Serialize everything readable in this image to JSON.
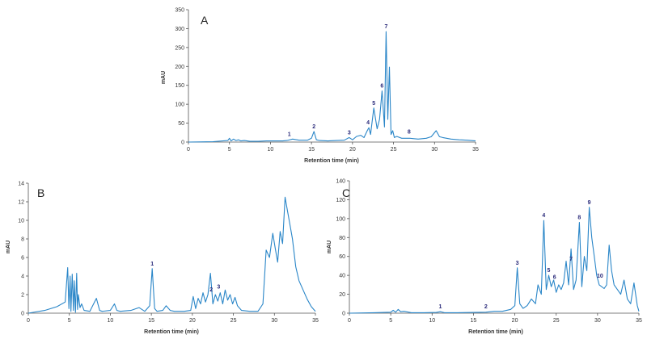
{
  "colors": {
    "trace": "#2a86c8",
    "peak_label": "#2a2a7a",
    "axis": "#555555"
  },
  "chart_data": [
    {
      "type": "line",
      "panel": "A",
      "xlabel": "Retention time (min)",
      "ylabel": "mAU",
      "xlim": [
        0,
        35
      ],
      "ylim": [
        0,
        350
      ],
      "xticks": [
        "0",
        "5",
        "10",
        "15",
        "20",
        "25",
        "30",
        "35"
      ],
      "yticks": [
        "0",
        "50",
        "100",
        "150",
        "200",
        "250",
        "300",
        "350"
      ],
      "series": [
        {
          "x": [
            0,
            3,
            4.8,
            5.0,
            5.2,
            5.5,
            5.8,
            6.1,
            6.4,
            6.8,
            7.5,
            8.5,
            9.5,
            10.5,
            11.5,
            12.0,
            12.7,
            13.5,
            14.5,
            15.0,
            15.3,
            15.6,
            16.0,
            17.0,
            18.0,
            19.0,
            19.6,
            20.0,
            20.5,
            21.0,
            21.4,
            21.8,
            22.0,
            22.2,
            22.6,
            23.0,
            23.3,
            23.6,
            23.9,
            24.1,
            24.3,
            24.5,
            24.7,
            24.9,
            25.1,
            25.4,
            26.0,
            27.0,
            28.0,
            29.0,
            29.6,
            30.2,
            30.6,
            31.0,
            32.0,
            33.0,
            34.0,
            35.0
          ],
          "y": [
            0,
            1,
            4,
            10,
            3,
            8,
            4,
            6,
            3,
            4,
            2,
            2,
            3,
            3,
            3,
            4,
            8,
            5,
            5,
            10,
            28,
            6,
            4,
            3,
            4,
            5,
            12,
            6,
            15,
            18,
            12,
            30,
            38,
            20,
            90,
            35,
            60,
            135,
            40,
            292,
            60,
            198,
            20,
            30,
            12,
            15,
            10,
            10,
            8,
            10,
            14,
            30,
            14,
            12,
            8,
            6,
            5,
            3
          ]
        }
      ],
      "peak_labels": [
        {
          "label": "1",
          "x": 12.3,
          "y": 8
        },
        {
          "label": "2",
          "x": 15.3,
          "y": 28
        },
        {
          "label": "3",
          "x": 19.6,
          "y": 12
        },
        {
          "label": "4",
          "x": 21.9,
          "y": 38
        },
        {
          "label": "5",
          "x": 22.6,
          "y": 90
        },
        {
          "label": "6",
          "x": 23.6,
          "y": 135
        },
        {
          "label": "7",
          "x": 24.1,
          "y": 292
        },
        {
          "label": "8",
          "x": 26.9,
          "y": 14
        }
      ]
    },
    {
      "type": "line",
      "panel": "B",
      "xlabel": "Retention time (min)",
      "ylabel": "mAU",
      "xlim": [
        0,
        35
      ],
      "ylim": [
        0,
        14
      ],
      "xticks": [
        "0",
        "5",
        "10",
        "15",
        "20",
        "25",
        "30",
        "35"
      ],
      "yticks": [
        "0",
        "2",
        "4",
        "6",
        "8",
        "10",
        "12",
        "14"
      ],
      "series": [
        {
          "x": [
            0,
            2,
            3.5,
            4.5,
            4.8,
            4.95,
            5.1,
            5.2,
            5.35,
            5.5,
            5.6,
            5.75,
            5.9,
            6.0,
            6.1,
            6.3,
            6.5,
            6.8,
            7.5,
            8.3,
            8.7,
            9.0,
            10.0,
            10.5,
            10.8,
            11.2,
            12.5,
            13.5,
            14.2,
            14.8,
            15.1,
            15.4,
            15.7,
            16.4,
            16.8,
            17.3,
            17.8,
            19.0,
            19.8,
            20.1,
            20.4,
            20.7,
            21.0,
            21.3,
            21.6,
            21.9,
            22.2,
            22.5,
            22.8,
            23.1,
            23.4,
            23.7,
            24.0,
            24.3,
            24.6,
            24.9,
            25.2,
            25.5,
            26.0,
            27.0,
            28.0,
            28.6,
            29.0,
            29.4,
            29.8,
            30.1,
            30.4,
            30.7,
            31.0,
            31.3,
            31.6,
            31.9,
            32.2,
            32.6,
            33.0,
            33.5,
            34.0,
            34.5,
            35.0
          ],
          "y": [
            0,
            0.3,
            0.7,
            1.2,
            4.9,
            0.5,
            4.0,
            0.2,
            4.2,
            0.3,
            3.5,
            0.1,
            4.3,
            0.4,
            2.0,
            0.6,
            1.0,
            0.3,
            0.2,
            1.6,
            0.3,
            0.2,
            0.3,
            1.0,
            0.3,
            0.2,
            0.3,
            0.6,
            0.2,
            0.8,
            4.8,
            0.5,
            0.2,
            0.3,
            0.8,
            0.3,
            0.2,
            0.2,
            0.3,
            1.8,
            0.5,
            1.6,
            1.0,
            2.2,
            1.2,
            2.0,
            4.3,
            1.0,
            2.0,
            1.3,
            2.2,
            1.0,
            2.5,
            1.4,
            2.0,
            1.0,
            1.7,
            0.8,
            0.3,
            0.2,
            0.2,
            1.0,
            6.8,
            6.0,
            8.6,
            7.0,
            5.5,
            8.8,
            7.5,
            12.5,
            11.0,
            9.5,
            8.0,
            5.0,
            3.5,
            2.5,
            1.5,
            0.7,
            0.2
          ]
        }
      ],
      "peak_labels": [
        {
          "label": "1",
          "x": 15.1,
          "y": 4.8
        },
        {
          "label": "2",
          "x": 22.3,
          "y": 2.0
        },
        {
          "label": "3",
          "x": 23.2,
          "y": 2.3
        }
      ]
    },
    {
      "type": "line",
      "panel": "C",
      "xlabel": "Retention time (min)",
      "ylabel": "mAU",
      "xlim": [
        0,
        35
      ],
      "ylim": [
        0,
        140
      ],
      "xticks": [
        "0",
        "5",
        "10",
        "15",
        "20",
        "25",
        "30",
        "35"
      ],
      "yticks": [
        "0",
        "20",
        "40",
        "60",
        "80",
        "100",
        "120",
        "140"
      ],
      "series": [
        {
          "x": [
            0,
            3,
            5.0,
            5.3,
            5.6,
            5.9,
            6.2,
            6.6,
            7.5,
            9.0,
            10.5,
            11.0,
            11.5,
            13.0,
            15.0,
            16.5,
            17.5,
            18.5,
            19.5,
            20.0,
            20.3,
            20.6,
            21.0,
            21.5,
            22.0,
            22.5,
            22.8,
            23.2,
            23.5,
            23.8,
            24.1,
            24.4,
            24.7,
            25.0,
            25.3,
            25.6,
            25.9,
            26.2,
            26.5,
            26.8,
            27.1,
            27.4,
            27.8,
            28.1,
            28.4,
            28.7,
            29.0,
            29.3,
            29.6,
            29.9,
            30.2,
            30.5,
            30.8,
            31.1,
            31.4,
            31.7,
            32.0,
            32.4,
            32.8,
            33.2,
            33.6,
            34.0,
            34.4,
            34.8,
            35.0
          ],
          "y": [
            0,
            0.5,
            1,
            3,
            1,
            4,
            1.5,
            2,
            0.5,
            0.5,
            0.8,
            1.5,
            0.5,
            0.5,
            0.8,
            1,
            2,
            2,
            4,
            8,
            48,
            10,
            5,
            8,
            15,
            10,
            30,
            20,
            98,
            25,
            40,
            28,
            35,
            22,
            30,
            25,
            32,
            55,
            30,
            68,
            25,
            35,
            96,
            28,
            60,
            45,
            112,
            80,
            60,
            40,
            30,
            28,
            26,
            30,
            72,
            45,
            30,
            25,
            20,
            35,
            15,
            10,
            32,
            8,
            2
          ]
        }
      ],
      "peak_labels": [
        {
          "label": "1",
          "x": 11.0,
          "y": 1.5
        },
        {
          "label": "2",
          "x": 16.5,
          "y": 1.5
        },
        {
          "label": "3",
          "x": 20.3,
          "y": 48
        },
        {
          "label": "4",
          "x": 23.5,
          "y": 98
        },
        {
          "label": "5",
          "x": 24.1,
          "y": 40
        },
        {
          "label": "6",
          "x": 24.8,
          "y": 33
        },
        {
          "label": "7",
          "x": 26.8,
          "y": 52
        },
        {
          "label": "8",
          "x": 27.8,
          "y": 96
        },
        {
          "label": "9",
          "x": 29.0,
          "y": 112
        },
        {
          "label": "10",
          "x": 30.3,
          "y": 34
        }
      ]
    }
  ]
}
